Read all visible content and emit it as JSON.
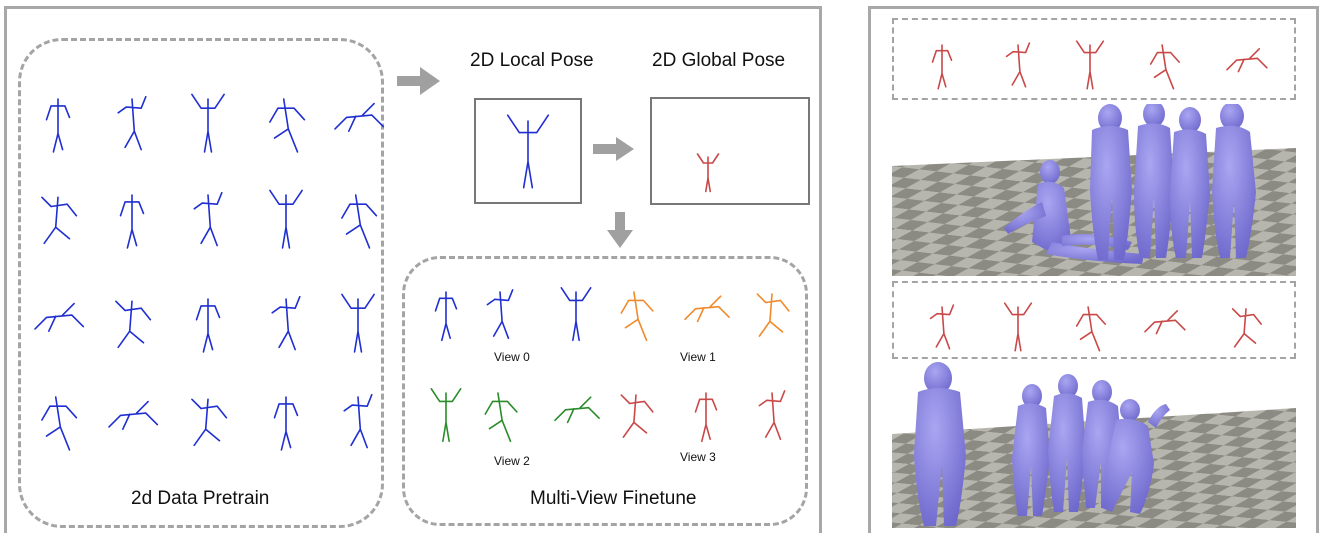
{
  "labels": {
    "local_pose": "2D Local Pose",
    "global_pose": "2D Global Pose",
    "pretrain": "2d Data Pretrain",
    "finetune": "Multi-View Finetune",
    "view0": "View 0",
    "view1": "View 1",
    "view2": "View 2",
    "view3": "View 3"
  },
  "colors": {
    "skeleton_blue": "#1f2fd0",
    "skeleton_orange": "#f08a2a",
    "skeleton_green": "#2a8c2a",
    "skeleton_red": "#c94848",
    "body_mesh": "#8b86e6",
    "floor_light": "#b7b6ae",
    "floor_dark": "#8c8b83",
    "arrow_gray": "#a0a0a0",
    "frame_gray": "#a8a8a8"
  }
}
